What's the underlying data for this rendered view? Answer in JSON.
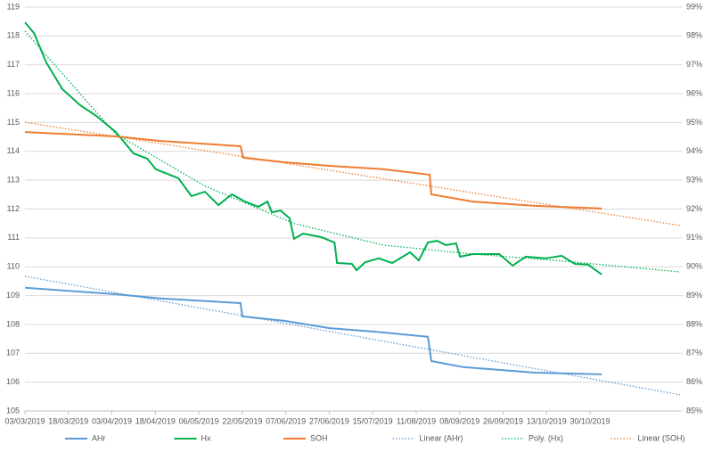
{
  "chart_data": {
    "type": "line",
    "xlim": [
      0,
      15.07
    ],
    "xticks": [
      {
        "value": 0,
        "label": "03/03/2019"
      },
      {
        "value": 1,
        "label": "18/03/2019"
      },
      {
        "value": 2,
        "label": "03/04/2019"
      },
      {
        "value": 3,
        "label": "18/04/2019"
      },
      {
        "value": 4,
        "label": "06/05/2019"
      },
      {
        "value": 5,
        "label": "22/05/2019"
      },
      {
        "value": 6,
        "label": "07/06/2019"
      },
      {
        "value": 7,
        "label": "27/06/2019"
      },
      {
        "value": 8,
        "label": "15/07/2019"
      },
      {
        "value": 9,
        "label": "11/08/2019"
      },
      {
        "value": 10,
        "label": "08/09/2019"
      },
      {
        "value": 11,
        "label": "26/09/2019"
      },
      {
        "value": 12,
        "label": "13/10/2019"
      },
      {
        "value": 13,
        "label": "30/10/2019"
      }
    ],
    "ylim": [
      105,
      119
    ],
    "yticks": [
      105,
      106,
      107,
      108,
      109,
      110,
      111,
      112,
      113,
      114,
      115,
      116,
      117,
      118,
      119
    ],
    "y2lim": [
      85,
      99
    ],
    "y2ticks": [
      {
        "value": 85,
        "label": "85%"
      },
      {
        "value": 86,
        "label": "86%"
      },
      {
        "value": 87,
        "label": "87%"
      },
      {
        "value": 88,
        "label": "88%"
      },
      {
        "value": 89,
        "label": "89%"
      },
      {
        "value": 90,
        "label": "90%"
      },
      {
        "value": 91,
        "label": "91%"
      },
      {
        "value": 92,
        "label": "92%"
      },
      {
        "value": 93,
        "label": "93%"
      },
      {
        "value": 94,
        "label": "94%"
      },
      {
        "value": 95,
        "label": "95%"
      },
      {
        "value": 96,
        "label": "96%"
      },
      {
        "value": 97,
        "label": "97%"
      },
      {
        "value": 98,
        "label": "98%"
      },
      {
        "value": 99,
        "label": "99%"
      }
    ],
    "grid": true,
    "legend": "bottom",
    "series": [
      {
        "name": "AHr",
        "color": "#5b9bd5",
        "dash": false,
        "x": [
          0,
          2.09,
          3.12,
          4.96,
          5.0,
          5.99,
          7.01,
          8.04,
          9.27,
          9.35,
          10.09,
          11.73,
          13.27
        ],
        "values": [
          109.27,
          109.05,
          108.9,
          108.74,
          108.28,
          108.12,
          107.87,
          107.75,
          107.57,
          106.73,
          106.52,
          106.33,
          106.27
        ]
      },
      {
        "name": "Hx",
        "color": "#00b050",
        "dash": false,
        "x": [
          0,
          0.21,
          0.49,
          0.86,
          1.27,
          1.64,
          2.09,
          2.5,
          2.81,
          3.01,
          3.53,
          3.83,
          4.14,
          4.45,
          4.76,
          5.06,
          5.37,
          5.58,
          5.68,
          5.88,
          6.09,
          6.19,
          6.4,
          6.81,
          7.12,
          7.18,
          7.52,
          7.63,
          7.83,
          8.14,
          8.45,
          8.86,
          9.06,
          9.27,
          9.48,
          9.68,
          9.92,
          10.01,
          10.3,
          10.91,
          11.22,
          11.52,
          11.98,
          12.35,
          12.65,
          12.96,
          13.27
        ],
        "values": [
          118.47,
          118.1,
          117.08,
          116.16,
          115.6,
          115.23,
          114.67,
          113.93,
          113.75,
          113.38,
          113.07,
          112.45,
          112.6,
          112.14,
          112.51,
          112.26,
          112.08,
          112.26,
          111.89,
          111.95,
          111.68,
          110.97,
          111.15,
          111.03,
          110.84,
          110.13,
          110.1,
          109.88,
          110.16,
          110.29,
          110.13,
          110.5,
          110.22,
          110.84,
          110.9,
          110.75,
          110.81,
          110.35,
          110.44,
          110.44,
          110.04,
          110.35,
          110.29,
          110.38,
          110.1,
          110.07,
          109.73
        ]
      },
      {
        "name": "SOH",
        "color": "#ed7d31",
        "dash": false,
        "axis": "y2",
        "x": [
          0,
          2.09,
          3.12,
          4.96,
          5.02,
          5.99,
          7.01,
          8.24,
          9.31,
          9.35,
          10.3,
          11.73,
          13.27
        ],
        "values": [
          94.67,
          94.52,
          94.36,
          94.18,
          93.78,
          93.62,
          93.5,
          93.38,
          93.19,
          92.51,
          92.26,
          92.11,
          92.02
        ]
      },
      {
        "name": "Linear (AHr)",
        "color": "#5b9bd5",
        "dash": true,
        "x": [
          0,
          15.07
        ],
        "values": [
          109.67,
          105.56
        ]
      },
      {
        "name": "Poly. (Hx)",
        "color": "#00b050",
        "dash": true,
        "x": [
          0,
          2.09,
          4.14,
          6.19,
          8.24,
          10.3,
          12.35,
          15.07
        ],
        "values": [
          118.17,
          114.6,
          112.8,
          111.5,
          110.75,
          110.44,
          110.2,
          109.82
        ]
      },
      {
        "name": "Linear (SOH)",
        "color": "#ed7d31",
        "dash": true,
        "axis": "y2",
        "x": [
          0,
          15.07
        ],
        "values": [
          95.01,
          91.43
        ]
      }
    ]
  }
}
